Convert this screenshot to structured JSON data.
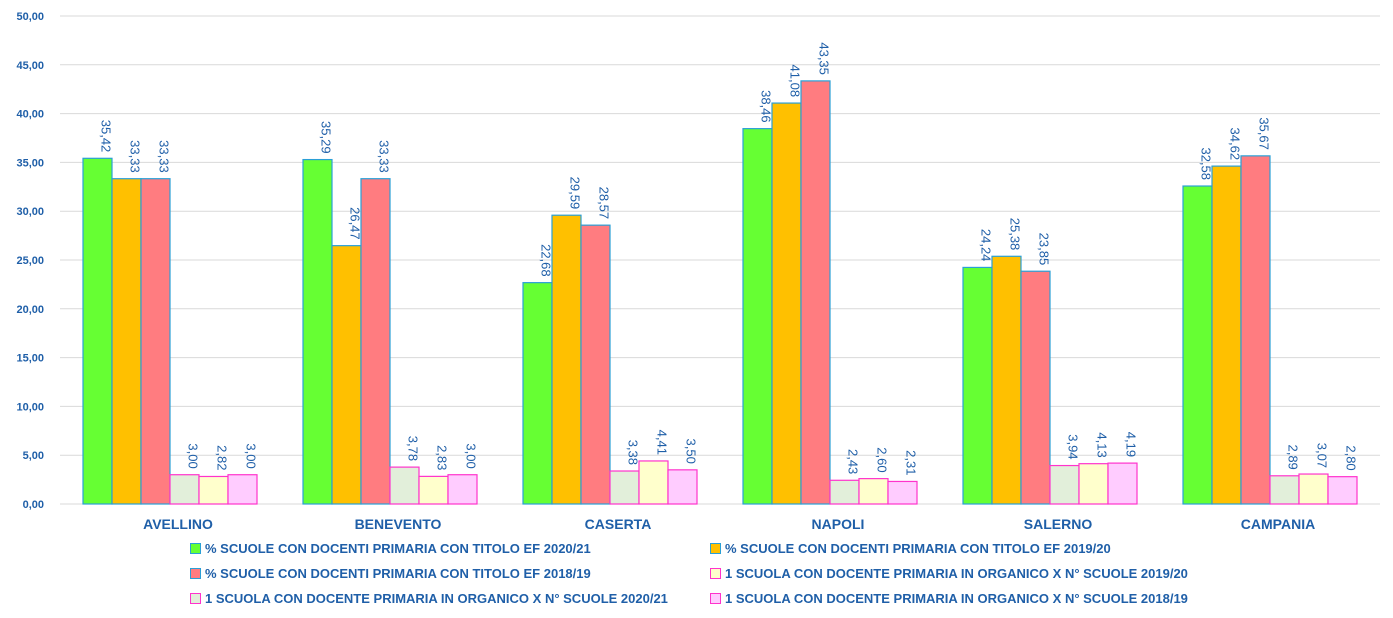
{
  "chart_data": {
    "type": "bar",
    "categories": [
      "AVELLINO",
      "BENEVENTO",
      "CASERTA",
      "NAPOLI",
      "SALERNO",
      "CAMPANIA"
    ],
    "ylim": [
      0,
      50
    ],
    "y_ticks": [
      "0,00",
      "5,00",
      "10,00",
      "15,00",
      "20,00",
      "25,00",
      "30,00",
      "35,00",
      "40,00",
      "45,00",
      "50,00"
    ],
    "grid": true,
    "legend_position": "bottom",
    "series": [
      {
        "name": "% SCUOLE CON DOCENTI PRIMARIA CON TITOLO EF 2020/21",
        "color": "#66ff33",
        "border": "#2a9fd6",
        "values": [
          35.42,
          35.29,
          22.68,
          38.46,
          24.24,
          32.58
        ],
        "labels": [
          "35,42",
          "35,29",
          "22,68",
          "38,46",
          "24,24",
          "32,58"
        ]
      },
      {
        "name": "% SCUOLE CON DOCENTI PRIMARIA CON TITOLO EF 2019/20",
        "color": "#ffc000",
        "border": "#2a9fd6",
        "values": [
          33.33,
          26.47,
          29.59,
          41.08,
          25.38,
          34.62
        ],
        "labels": [
          "33,33",
          "26,47",
          "29,59",
          "41,08",
          "25,38",
          "34,62"
        ]
      },
      {
        "name": "% SCUOLE CON DOCENTI PRIMARIA CON TITOLO EF 2018/19",
        "color": "#ff7c80",
        "border": "#2a9fd6",
        "values": [
          33.33,
          33.33,
          28.57,
          43.35,
          23.85,
          35.67
        ],
        "labels": [
          "33,33",
          "33,33",
          "28,57",
          "43,35",
          "23,85",
          "35,67"
        ]
      },
      {
        "name": "1 SCUOLA CON DOCENTE  PRIMARIA IN ORGANICO X N° SCUOLE 2020/21",
        "color": "#e2efda",
        "border": "#ff33cc",
        "values": [
          3.0,
          3.78,
          3.38,
          2.43,
          3.94,
          2.89
        ],
        "labels": [
          "3,00",
          "3,78",
          "3,38",
          "2,43",
          "3,94",
          "2,89"
        ]
      },
      {
        "name": "1 SCUOLA CON DOCENTE  PRIMARIA IN ORGANICO X N° SCUOLE 2019/20",
        "color": "#ffffcc",
        "border": "#ff33cc",
        "values": [
          2.82,
          2.83,
          4.41,
          2.6,
          4.13,
          3.07
        ],
        "labels": [
          "2,82",
          "2,83",
          "4,41",
          "2,60",
          "4,13",
          "3,07"
        ]
      },
      {
        "name": "1 SCUOLA CON DOCENTE  PRIMARIA IN ORGANICO X N° SCUOLE 2018/19",
        "color": "#ffccff",
        "border": "#ff33cc",
        "values": [
          3.0,
          3.0,
          3.5,
          2.31,
          4.19,
          2.8
        ],
        "labels": [
          "3,00",
          "3,00",
          "3,50",
          "2,31",
          "4,19",
          "2,80"
        ]
      }
    ],
    "legend_order": [
      0,
      1,
      2,
      4,
      3,
      5
    ]
  }
}
